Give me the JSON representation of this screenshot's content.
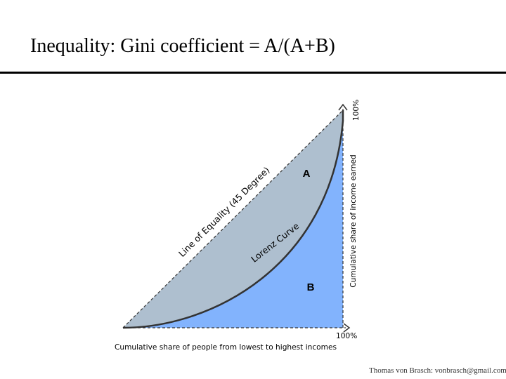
{
  "slide": {
    "title": "Inequality: Gini coefficient = A/(A+B)",
    "footer": "Thomas von Brasch: vonbrasch@gmail.com"
  },
  "diagram": {
    "colors": {
      "area_a": "#aebfcf",
      "area_b": "#82b3fd",
      "line": "#333333"
    },
    "labels": {
      "area_a": "A",
      "area_b": "B",
      "equality_line": "Line of Equality (45 Degree)",
      "lorenz_curve": "Lorenz Curve",
      "x_axis": "Cumulative share of people from lowest to highest incomes",
      "y_axis": "Cumulative share of income earned",
      "x_max": "100%",
      "y_max": "100%"
    }
  }
}
